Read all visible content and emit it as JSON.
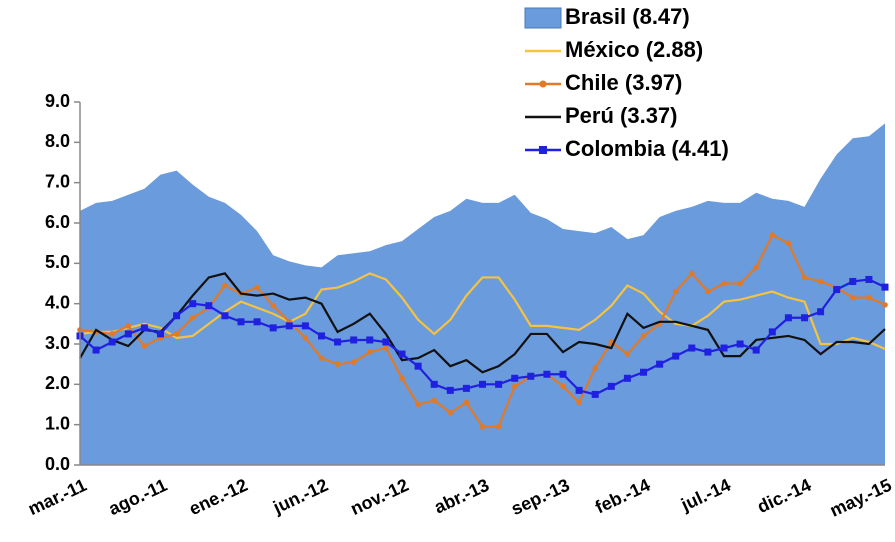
{
  "chart_data": {
    "type": "line",
    "categories": [
      "mar.-11",
      null,
      null,
      null,
      null,
      "ago.-11",
      null,
      null,
      null,
      null,
      "ene.-12",
      null,
      null,
      null,
      null,
      "jun.-12",
      null,
      null,
      null,
      null,
      "nov.-12",
      null,
      null,
      null,
      null,
      "abr.-13",
      null,
      null,
      null,
      null,
      "sep.-13",
      null,
      null,
      null,
      null,
      "feb.-14",
      null,
      null,
      null,
      null,
      "jul.-14",
      null,
      null,
      null,
      null,
      "dic.-14",
      null,
      null,
      null,
      null,
      "may.-15"
    ],
    "ylim": [
      0,
      9
    ],
    "yticks": [
      {
        "value": 0,
        "label": "0.0"
      },
      {
        "value": 1,
        "label": "1.0"
      },
      {
        "value": 2,
        "label": "2.0"
      },
      {
        "value": 3,
        "label": "3.0"
      },
      {
        "value": 4,
        "label": "4.0"
      },
      {
        "value": 5,
        "label": "5.0"
      },
      {
        "value": 6,
        "label": "6.0"
      },
      {
        "value": 7,
        "label": "7.0"
      },
      {
        "value": 8,
        "label": "8.0"
      },
      {
        "value": 9,
        "label": "9.0"
      }
    ],
    "series": [
      {
        "name": "Brasil (8.47)",
        "type": "area",
        "color": "#6a9bdc",
        "marker": "none",
        "values": [
          6.3,
          6.5,
          6.55,
          6.7,
          6.85,
          7.2,
          7.3,
          6.95,
          6.65,
          6.5,
          6.2,
          5.8,
          5.2,
          5.05,
          4.95,
          4.9,
          5.2,
          5.25,
          5.3,
          5.45,
          5.55,
          5.85,
          6.15,
          6.3,
          6.6,
          6.5,
          6.5,
          6.7,
          6.25,
          6.1,
          5.85,
          5.8,
          5.75,
          5.9,
          5.6,
          5.7,
          6.15,
          6.3,
          6.4,
          6.55,
          6.5,
          6.5,
          6.75,
          6.6,
          6.55,
          6.4,
          7.1,
          7.7,
          8.1,
          8.15,
          8.47
        ]
      },
      {
        "name": "México (2.88)",
        "type": "line",
        "color": "#f5c242",
        "marker": "none",
        "values": [
          3.25,
          3.3,
          3.3,
          3.4,
          3.5,
          3.4,
          3.15,
          3.2,
          3.5,
          3.8,
          4.05,
          3.9,
          3.75,
          3.55,
          3.75,
          4.35,
          4.4,
          4.55,
          4.75,
          4.6,
          4.15,
          3.6,
          3.25,
          3.6,
          4.2,
          4.65,
          4.65,
          4.1,
          3.45,
          3.45,
          3.4,
          3.35,
          3.6,
          3.95,
          4.45,
          4.25,
          3.8,
          3.5,
          3.45,
          3.7,
          4.05,
          4.1,
          4.2,
          4.3,
          4.15,
          4.05,
          3.0,
          3.0,
          3.15,
          3.05,
          2.88
        ]
      },
      {
        "name": "Chile (3.97)",
        "type": "line",
        "color": "#e07a28",
        "marker": "circle",
        "values": [
          3.35,
          3.3,
          3.25,
          3.45,
          2.95,
          3.15,
          3.25,
          3.65,
          3.9,
          4.45,
          4.25,
          4.4,
          3.95,
          3.55,
          3.15,
          2.65,
          2.5,
          2.55,
          2.8,
          2.9,
          2.15,
          1.5,
          1.6,
          1.3,
          1.55,
          0.95,
          0.95,
          1.95,
          2.2,
          2.25,
          1.95,
          1.55,
          2.4,
          3.05,
          2.75,
          3.2,
          3.5,
          4.3,
          4.75,
          4.3,
          4.5,
          4.5,
          4.9,
          5.7,
          5.5,
          4.65,
          4.55,
          4.4,
          4.15,
          4.15,
          3.97
        ]
      },
      {
        "name": "Perú (3.37)",
        "type": "line",
        "color": "#111111",
        "marker": "none",
        "values": [
          2.65,
          3.35,
          3.1,
          2.95,
          3.35,
          3.3,
          3.7,
          4.2,
          4.65,
          4.75,
          4.25,
          4.2,
          4.25,
          4.1,
          4.15,
          4.0,
          3.3,
          3.5,
          3.75,
          3.25,
          2.6,
          2.65,
          2.85,
          2.45,
          2.6,
          2.3,
          2.45,
          2.75,
          3.25,
          3.25,
          2.8,
          3.05,
          3.0,
          2.9,
          3.75,
          3.4,
          3.55,
          3.55,
          3.45,
          3.35,
          2.7,
          2.7,
          3.1,
          3.15,
          3.2,
          3.1,
          2.75,
          3.05,
          3.05,
          3.0,
          3.37
        ]
      },
      {
        "name": "Colombia (4.41)",
        "type": "line",
        "color": "#2020e0",
        "marker": "square",
        "values": [
          3.2,
          2.85,
          3.05,
          3.25,
          3.4,
          3.25,
          3.7,
          4.0,
          3.95,
          3.7,
          3.55,
          3.55,
          3.4,
          3.45,
          3.45,
          3.2,
          3.05,
          3.1,
          3.1,
          3.05,
          2.75,
          2.45,
          2.0,
          1.85,
          1.9,
          2.0,
          2.0,
          2.15,
          2.2,
          2.25,
          2.25,
          1.85,
          1.75,
          1.95,
          2.15,
          2.3,
          2.5,
          2.7,
          2.9,
          2.8,
          2.9,
          3.0,
          2.85,
          3.3,
          3.65,
          3.65,
          3.8,
          4.35,
          4.55,
          4.6,
          4.41
        ]
      }
    ]
  }
}
